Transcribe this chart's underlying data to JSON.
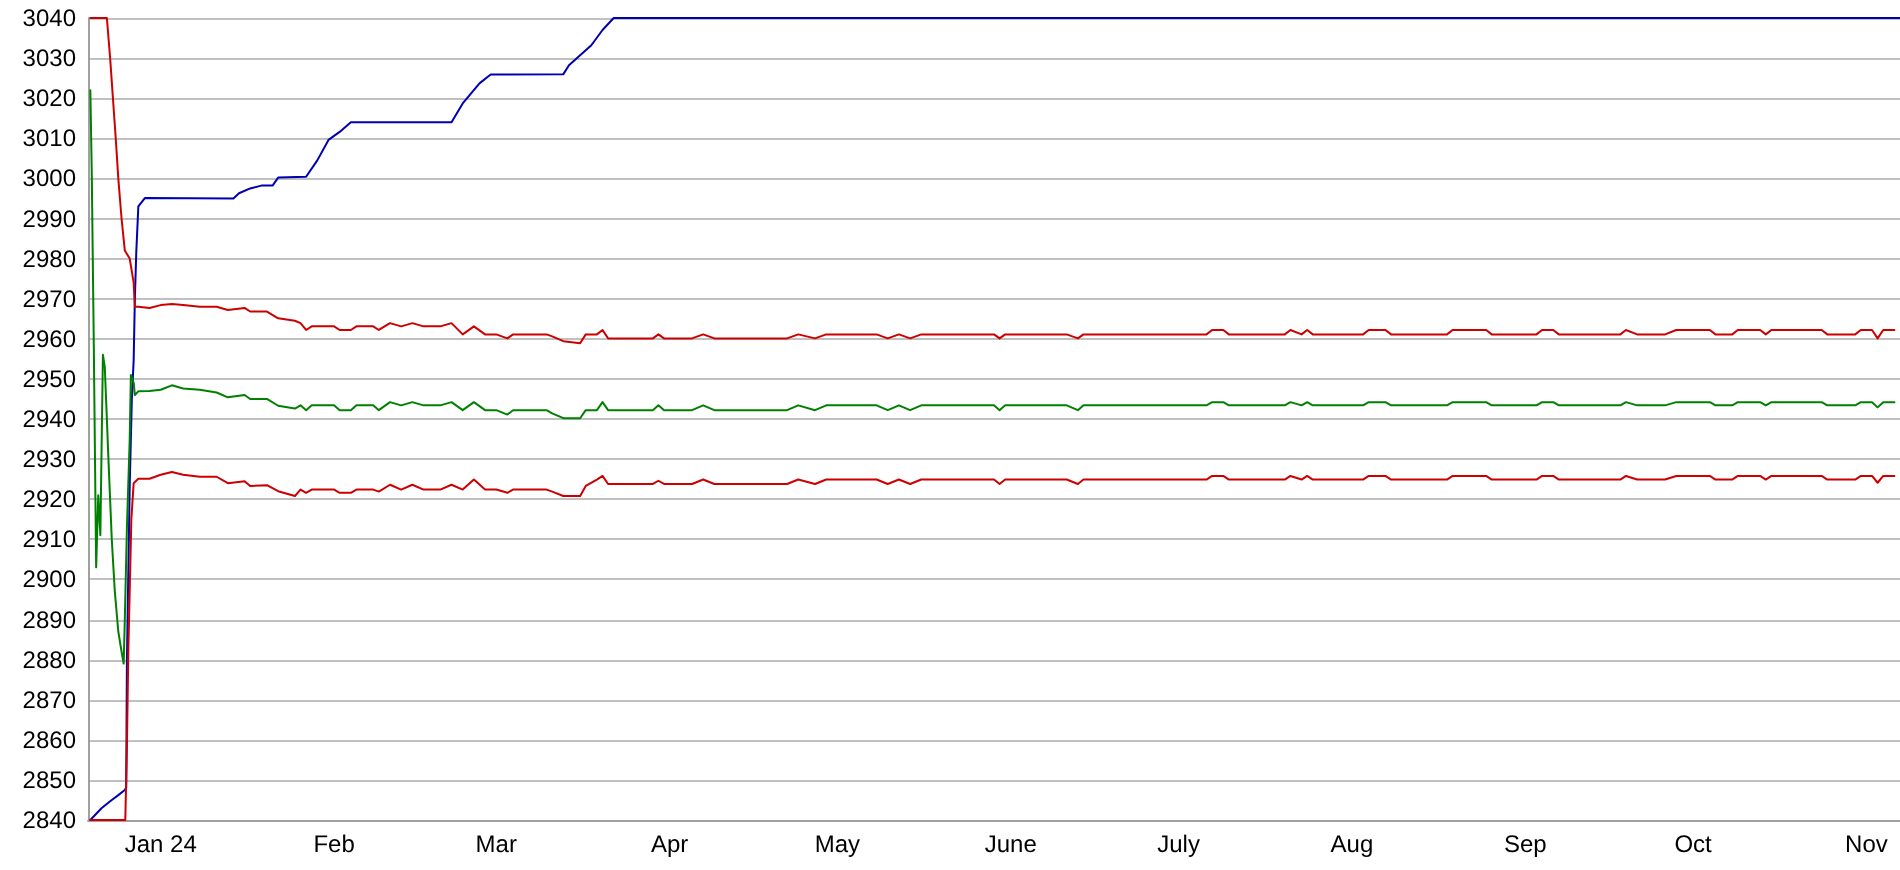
{
  "chart_data": {
    "type": "line",
    "xlim": [
      "2023-12-19",
      "2024-11-07"
    ],
    "xticks": [
      {
        "value": "2024-01-01",
        "label": "Jan 24"
      },
      {
        "value": "2024-02-01",
        "label": "Feb"
      },
      {
        "value": "2024-03-01",
        "label": "Mar"
      },
      {
        "value": "2024-04-01",
        "label": "Apr"
      },
      {
        "value": "2024-05-01",
        "label": "May"
      },
      {
        "value": "2024-06-01",
        "label": "June"
      },
      {
        "value": "2024-07-01",
        "label": "July"
      },
      {
        "value": "2024-08-01",
        "label": "Aug"
      },
      {
        "value": "2024-09-01",
        "label": "Sep"
      },
      {
        "value": "2024-10-01",
        "label": "Oct"
      },
      {
        "value": "2024-11-01",
        "label": "Nov"
      }
    ],
    "ylim": [
      2840,
      3040
    ],
    "yticks": [
      2840,
      2850,
      2860,
      2870,
      2880,
      2890,
      2900,
      2910,
      2920,
      2930,
      2940,
      2950,
      2960,
      2970,
      2980,
      2990,
      3000,
      3010,
      3020,
      3030,
      3040
    ],
    "grid": "y",
    "series": [
      {
        "color": "#0000b0",
        "x": [
          "2023-12-19T10:00",
          "2023-12-21T11:00",
          "2023-12-23T06:00",
          "2023-12-24T10:00",
          "2023-12-25T14:00",
          "2023-12-25T20:00",
          "2023-12-25T23:00",
          "2023-12-26T11:00",
          "2023-12-26T20:00",
          "2023-12-27T04:00",
          "2023-12-27T09:00",
          "2023-12-27T15:00",
          "2023-12-28T00:00",
          "2023-12-29T04:00",
          "2024-01-14",
          "2024-01-15",
          "2024-01-17",
          "2024-01-19",
          "2024-01-21",
          "2024-01-22",
          "2024-01-27",
          "2024-01-29",
          "2024-01-31",
          "2024-02-02",
          "2024-02-04",
          "2024-02-22",
          "2024-02-24",
          "2024-02-27",
          "2024-02-29",
          "2024-03-13",
          "2024-03-14",
          "2024-03-18",
          "2024-03-20",
          "2024-03-22",
          "2024-11-07"
        ],
        "values": [
          2840,
          2843,
          2845,
          2846.2,
          2847.5,
          2848,
          2880,
          2923.3,
          2944.7,
          2954.7,
          2969.7,
          2981.3,
          2993,
          2995.1,
          2995,
          2996.3,
          2997.5,
          2998.2,
          2998.2,
          3000.2,
          3000.4,
          3004.5,
          3009.6,
          3011.6,
          3014,
          3014,
          3018.7,
          3023.7,
          3025.9,
          3026,
          3028.2,
          3033.2,
          3037,
          3040,
          3040
        ]
      },
      {
        "color": "#cc0000",
        "x": [
          "2023-12-19T10:00",
          "2023-12-22T09:00",
          "2023-12-22T23:00",
          "2023-12-23T11:00",
          "2023-12-23T23:00",
          "2023-12-24T10:00",
          "2023-12-25T00:00",
          "2023-12-25T14:00",
          "2023-12-26T11:00",
          "2023-12-27T04:00",
          "2023-12-27T09:00",
          "2023-12-28",
          "2023-12-30",
          "2024-01-01",
          "2024-01-03",
          "2024-01-05",
          "2024-01-08",
          "2024-01-11",
          "2024-01-13",
          "2024-01-16",
          "2024-01-17",
          "2024-01-20",
          "2024-01-22",
          "2024-01-25",
          "2024-01-26",
          "2024-01-27",
          "2024-01-28",
          "2024-02-01",
          "2024-02-02",
          "2024-02-04",
          "2024-02-05",
          "2024-02-08",
          "2024-02-09",
          "2024-02-11",
          "2024-02-13",
          "2024-02-15",
          "2024-02-17",
          "2024-02-20",
          "2024-02-22",
          "2024-02-24",
          "2024-02-26",
          "2024-02-28",
          "2024-03-01",
          "2024-03-03",
          "2024-03-04",
          "2024-03-10",
          "2024-03-11",
          "2024-03-13",
          "2024-03-16",
          "2024-03-17",
          "2024-03-19",
          "2024-03-20",
          "2024-03-21",
          "2024-03-29",
          "2024-03-30",
          "2024-03-31",
          "2024-04-05",
          "2024-04-07",
          "2024-04-09",
          "2024-04-22",
          "2024-04-24",
          "2024-04-27",
          "2024-04-29",
          "2024-05-08",
          "2024-05-10",
          "2024-05-12",
          "2024-05-14",
          "2024-05-16",
          "2024-05-29",
          "2024-05-30",
          "2024-05-31",
          "2024-06-11",
          "2024-06-13",
          "2024-06-14",
          "2024-07-06",
          "2024-07-07",
          "2024-07-09",
          "2024-07-10",
          "2024-07-20",
          "2024-07-21",
          "2024-07-23",
          "2024-07-24",
          "2024-07-25",
          "2024-08-03",
          "2024-08-04",
          "2024-08-07",
          "2024-08-08",
          "2024-08-18",
          "2024-08-19",
          "2024-08-25",
          "2024-08-26",
          "2024-09-03",
          "2024-09-04",
          "2024-09-06",
          "2024-09-07",
          "2024-09-18",
          "2024-09-19",
          "2024-09-21",
          "2024-09-26",
          "2024-09-28",
          "2024-10-04",
          "2024-10-05",
          "2024-10-08",
          "2024-10-09",
          "2024-10-13",
          "2024-10-14",
          "2024-10-15",
          "2024-10-24",
          "2024-10-25",
          "2024-10-30",
          "2024-10-31",
          "2024-11-02",
          "2024-11-03",
          "2024-11-04",
          "2024-11-06"
        ],
        "values": [
          3040,
          3040,
          3030,
          3020,
          3010,
          3000,
          2990,
          2982,
          2980,
          2974,
          2968,
          2968.0,
          2967.7,
          2968.4,
          2968.7,
          2968.4,
          2968.0,
          2968.0,
          2967.2,
          2967.7,
          2966.8,
          2966.8,
          2965.1,
          2964.5,
          2963.9,
          2962.2,
          2963.1,
          2963.1,
          2962.2,
          2962.2,
          2963.1,
          2963.1,
          2962.2,
          2963.9,
          2963.1,
          2963.9,
          2963.1,
          2963.1,
          2963.9,
          2961.1,
          2963.1,
          2961.1,
          2961.1,
          2960.1,
          2961.1,
          2961.1,
          2960.6,
          2959.4,
          2958.9,
          2961.1,
          2961.1,
          2962.2,
          2960.1,
          2960.1,
          2961.1,
          2960.1,
          2960.1,
          2961.1,
          2960.1,
          2960.1,
          2961.1,
          2960.1,
          2961.1,
          2961.1,
          2960.1,
          2961.1,
          2960.1,
          2961.1,
          2961.1,
          2960.1,
          2961.1,
          2961.1,
          2960.1,
          2961.1,
          2961.1,
          2962.2,
          2962.2,
          2961.1,
          2961.1,
          2962.2,
          2961.1,
          2962.2,
          2961.1,
          2961.1,
          2962.2,
          2962.2,
          2961.1,
          2961.1,
          2962.2,
          2962.2,
          2961.1,
          2961.1,
          2962.2,
          2962.2,
          2961.1,
          2961.1,
          2962.2,
          2961.1,
          2961.1,
          2962.2,
          2962.2,
          2961.1,
          2961.1,
          2962.2,
          2962.2,
          2961.1,
          2962.2,
          2962.2,
          2961.1,
          2961.1,
          2962.2,
          2962.2,
          2960.1,
          2962.2,
          2962.2
        ]
      },
      {
        "color": "#008000",
        "x": [
          "2023-12-19T10:00",
          "2023-12-19T16:00",
          "2023-12-20T00:00",
          "2023-12-20T11:00",
          "2023-12-20T20:00",
          "2023-12-21T05:00",
          "2023-12-21T16:00",
          "2023-12-22T00:00",
          "2023-12-22T09:00",
          "2023-12-22T15:00",
          "2023-12-23T06:00",
          "2023-12-23T19:00",
          "2023-12-24T10:00",
          "2023-12-25T00:00",
          "2023-12-25T09:00",
          "2023-12-25T14:00",
          "2023-12-25T23:00",
          "2023-12-26T11:00",
          "2023-12-26T16:00",
          "2023-12-27T04:00",
          "2023-12-27T09:00",
          "2023-12-28",
          "2023-12-30",
          "2024-01-01",
          "2024-01-03",
          "2024-01-05",
          "2024-01-08",
          "2024-01-11",
          "2024-01-13",
          "2024-01-16",
          "2024-01-17",
          "2024-01-20",
          "2024-01-22",
          "2024-01-25",
          "2024-01-26",
          "2024-01-27",
          "2024-01-28",
          "2024-02-01",
          "2024-02-02",
          "2024-02-04",
          "2024-02-05",
          "2024-02-08",
          "2024-02-09",
          "2024-02-11",
          "2024-02-13",
          "2024-02-15",
          "2024-02-17",
          "2024-02-20",
          "2024-02-22",
          "2024-02-24",
          "2024-02-26",
          "2024-02-28",
          "2024-03-01",
          "2024-03-03",
          "2024-03-04",
          "2024-03-10",
          "2024-03-11",
          "2024-03-13",
          "2024-03-16",
          "2024-03-17",
          "2024-03-19",
          "2024-03-20",
          "2024-03-21",
          "2024-03-29",
          "2024-03-30",
          "2024-03-31",
          "2024-04-05",
          "2024-04-07",
          "2024-04-09",
          "2024-04-22",
          "2024-04-24",
          "2024-04-27",
          "2024-04-29",
          "2024-05-08",
          "2024-05-10",
          "2024-05-12",
          "2024-05-14",
          "2024-05-16",
          "2024-05-29",
          "2024-05-30",
          "2024-05-31",
          "2024-06-11",
          "2024-06-13",
          "2024-06-14",
          "2024-07-06",
          "2024-07-07",
          "2024-07-09",
          "2024-07-10",
          "2024-07-20",
          "2024-07-21",
          "2024-07-23",
          "2024-07-24",
          "2024-07-25",
          "2024-08-03",
          "2024-08-04",
          "2024-08-07",
          "2024-08-08",
          "2024-08-18",
          "2024-08-19",
          "2024-08-25",
          "2024-08-26",
          "2024-09-03",
          "2024-09-04",
          "2024-09-06",
          "2024-09-07",
          "2024-09-18",
          "2024-09-19",
          "2024-09-21",
          "2024-09-26",
          "2024-09-28",
          "2024-10-04",
          "2024-10-05",
          "2024-10-08",
          "2024-10-09",
          "2024-10-13",
          "2024-10-14",
          "2024-10-15",
          "2024-10-24",
          "2024-10-25",
          "2024-10-30",
          "2024-10-31",
          "2024-11-02",
          "2024-11-03",
          "2024-11-04",
          "2024-11-06"
        ],
        "values": [
          3022,
          3002,
          2963,
          2903,
          2921,
          2911,
          2956,
          2953,
          2940,
          2931,
          2910,
          2897,
          2887,
          2882,
          2879,
          2890,
          2913,
          2935,
          2951,
          2949,
          2946,
          2946.9,
          2947.0,
          2947.3,
          2948.4,
          2947.6,
          2947.3,
          2946.6,
          2945.4,
          2946.0,
          2945.0,
          2945.0,
          2943.3,
          2942.6,
          2943.4,
          2942.2,
          2943.4,
          2943.4,
          2942.2,
          2942.2,
          2943.4,
          2943.4,
          2942.2,
          2944.2,
          2943.4,
          2944.2,
          2943.4,
          2943.4,
          2944.2,
          2942.2,
          2944.2,
          2942.2,
          2942.2,
          2941.1,
          2942.2,
          2942.2,
          2941.4,
          2940.2,
          2940.2,
          2942.2,
          2942.2,
          2944.2,
          2942.2,
          2942.2,
          2943.4,
          2942.2,
          2942.2,
          2943.4,
          2942.2,
          2942.2,
          2943.4,
          2942.2,
          2943.4,
          2943.4,
          2942.2,
          2943.4,
          2942.2,
          2943.4,
          2943.4,
          2942.2,
          2943.4,
          2943.4,
          2942.2,
          2943.4,
          2943.4,
          2944.2,
          2944.2,
          2943.4,
          2943.4,
          2944.2,
          2943.4,
          2944.2,
          2943.4,
          2943.4,
          2944.2,
          2944.2,
          2943.4,
          2943.4,
          2944.2,
          2944.2,
          2943.4,
          2943.4,
          2944.2,
          2944.2,
          2943.4,
          2943.4,
          2944.2,
          2943.4,
          2943.4,
          2944.2,
          2944.2,
          2943.4,
          2943.4,
          2944.2,
          2944.2,
          2943.4,
          2944.2,
          2944.2,
          2943.4,
          2943.4,
          2944.2,
          2944.2,
          2942.9,
          2944.2,
          2944.2
        ]
      },
      {
        "color": "#cc0000",
        "x": [
          "2023-12-19T10:00",
          "2023-12-25T16:00",
          "2023-12-25T23:00",
          "2023-12-26T05:00",
          "2023-12-26T18:00",
          "2023-12-27T04:00",
          "2023-12-28",
          "2023-12-30",
          "2024-01-01",
          "2024-01-03",
          "2024-01-05",
          "2024-01-08",
          "2024-01-11",
          "2024-01-13",
          "2024-01-16",
          "2024-01-17",
          "2024-01-20",
          "2024-01-22",
          "2024-01-25",
          "2024-01-26",
          "2024-01-27",
          "2024-01-28",
          "2024-02-01",
          "2024-02-02",
          "2024-02-04",
          "2024-02-05",
          "2024-02-08",
          "2024-02-09",
          "2024-02-11",
          "2024-02-13",
          "2024-02-15",
          "2024-02-17",
          "2024-02-20",
          "2024-02-22",
          "2024-02-24",
          "2024-02-26",
          "2024-02-28",
          "2024-03-01",
          "2024-03-03",
          "2024-03-04",
          "2024-03-10",
          "2024-03-11",
          "2024-03-13",
          "2024-03-16",
          "2024-03-17",
          "2024-03-19",
          "2024-03-20",
          "2024-03-21",
          "2024-03-29",
          "2024-03-30",
          "2024-03-31",
          "2024-04-05",
          "2024-04-07",
          "2024-04-09",
          "2024-04-22",
          "2024-04-24",
          "2024-04-27",
          "2024-04-29",
          "2024-05-08",
          "2024-05-10",
          "2024-05-12",
          "2024-05-14",
          "2024-05-16",
          "2024-05-29",
          "2024-05-30",
          "2024-05-31",
          "2024-06-11",
          "2024-06-13",
          "2024-06-14",
          "2024-07-06",
          "2024-07-07",
          "2024-07-09",
          "2024-07-10",
          "2024-07-20",
          "2024-07-21",
          "2024-07-23",
          "2024-07-24",
          "2024-07-25",
          "2024-08-03",
          "2024-08-04",
          "2024-08-07",
          "2024-08-08",
          "2024-08-18",
          "2024-08-19",
          "2024-08-25",
          "2024-08-26",
          "2024-09-03",
          "2024-09-04",
          "2024-09-06",
          "2024-09-07",
          "2024-09-18",
          "2024-09-19",
          "2024-09-21",
          "2024-09-26",
          "2024-09-28",
          "2024-10-04",
          "2024-10-05",
          "2024-10-08",
          "2024-10-09",
          "2024-10-13",
          "2024-10-14",
          "2024-10-15",
          "2024-10-24",
          "2024-10-25",
          "2024-10-30",
          "2024-10-31",
          "2024-11-02",
          "2024-11-03",
          "2024-11-04",
          "2024-11-06"
        ],
        "values": [
          2840,
          2840,
          2858,
          2882,
          2915,
          2924,
          2925.1,
          2925.1,
          2926.1,
          2926.8,
          2926.1,
          2925.6,
          2925.6,
          2924.0,
          2924.5,
          2923.3,
          2923.5,
          2922.0,
          2920.8,
          2922.4,
          2921.6,
          2922.4,
          2922.4,
          2921.6,
          2921.6,
          2922.4,
          2922.4,
          2921.9,
          2923.6,
          2922.4,
          2923.6,
          2922.4,
          2922.4,
          2923.6,
          2922.4,
          2924.9,
          2922.4,
          2922.4,
          2921.6,
          2922.4,
          2922.4,
          2921.9,
          2920.8,
          2920.8,
          2923.3,
          2924.9,
          2925.8,
          2923.8,
          2923.8,
          2924.6,
          2923.8,
          2923.8,
          2924.9,
          2923.8,
          2923.8,
          2924.9,
          2923.8,
          2924.9,
          2924.9,
          2923.8,
          2924.9,
          2923.8,
          2924.9,
          2924.9,
          2923.8,
          2924.9,
          2924.9,
          2923.8,
          2924.9,
          2924.9,
          2925.8,
          2925.8,
          2924.9,
          2924.9,
          2925.8,
          2924.9,
          2925.8,
          2924.9,
          2924.9,
          2925.8,
          2925.8,
          2924.9,
          2924.9,
          2925.8,
          2925.8,
          2924.9,
          2924.9,
          2925.8,
          2925.8,
          2924.9,
          2924.9,
          2925.8,
          2924.9,
          2924.9,
          2925.8,
          2925.8,
          2924.9,
          2924.9,
          2925.8,
          2925.8,
          2924.9,
          2925.8,
          2925.8,
          2924.9,
          2924.9,
          2925.8,
          2925.8,
          2924.1,
          2925.8,
          2925.8
        ]
      }
    ]
  }
}
